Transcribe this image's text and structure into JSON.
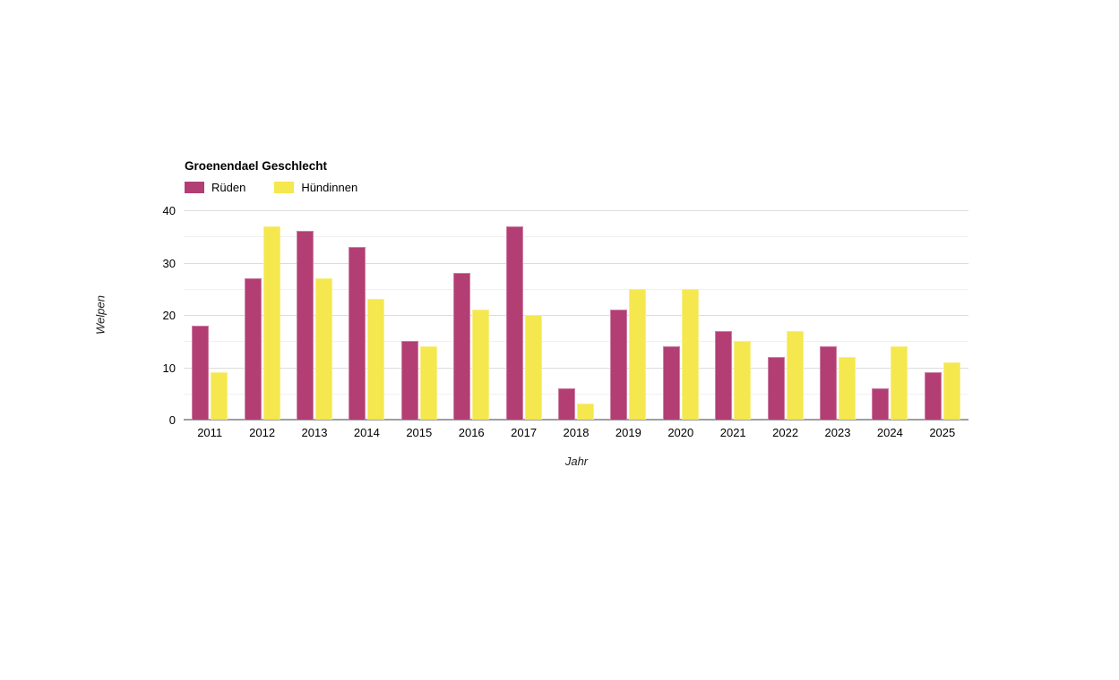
{
  "chart_data": {
    "type": "bar",
    "title": "Groenendael Geschlecht",
    "xlabel": "Jahr",
    "ylabel": "Welpen",
    "categories": [
      "2011",
      "2012",
      "2013",
      "2014",
      "2015",
      "2016",
      "2017",
      "2018",
      "2019",
      "2020",
      "2021",
      "2022",
      "2023",
      "2024",
      "2025"
    ],
    "series": [
      {
        "name": "Rüden",
        "color": "#b23e74",
        "values": [
          18,
          27,
          36,
          33,
          15,
          28,
          37,
          6,
          21,
          14,
          17,
          12,
          14,
          6,
          9
        ]
      },
      {
        "name": "Hündinnen",
        "color": "#f5e74e",
        "values": [
          9,
          37,
          27,
          23,
          14,
          21,
          20,
          3,
          25,
          25,
          15,
          17,
          12,
          14,
          11
        ]
      }
    ],
    "ylim": [
      0,
      40
    ],
    "yticks": [
      0,
      10,
      20,
      30,
      40
    ],
    "grid_minor_step": 5,
    "grid_on": true,
    "legend_position": "top-left",
    "colors": {
      "major_gridline": "#dcdcdc",
      "minor_gridline": "#f0f0f0",
      "baseline": "#9e9e9e",
      "background": "#ffffff"
    }
  }
}
